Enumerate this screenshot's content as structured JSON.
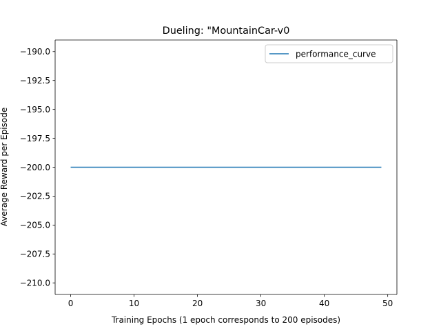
{
  "chart_data": {
    "type": "line",
    "title": "Dueling: \"MountainCar-v0",
    "xlabel": "Training Epochs (1 epoch corresponds to 200 episodes)",
    "ylabel": "Average Reward per Episode",
    "xlim": [
      -2.45,
      51.45
    ],
    "ylim": [
      -211.0,
      -189.0
    ],
    "x_ticks": [
      0,
      10,
      20,
      30,
      40,
      50
    ],
    "x_tick_labels": [
      "0",
      "10",
      "20",
      "30",
      "40",
      "50"
    ],
    "y_ticks": [
      -190.0,
      -192.5,
      -195.0,
      -197.5,
      -200.0,
      -202.5,
      -205.0,
      -207.5,
      -210.0
    ],
    "y_tick_labels": [
      "−190.0",
      "−192.5",
      "−195.0",
      "−197.5",
      "−200.0",
      "−202.5",
      "−205.0",
      "−207.5",
      "−210.0"
    ],
    "grid": false,
    "legend_position": "top-right",
    "series": [
      {
        "name": "performance_curve",
        "color": "#1f77b4",
        "x": [
          0,
          49
        ],
        "y": [
          -200.0,
          -200.0
        ]
      }
    ]
  }
}
